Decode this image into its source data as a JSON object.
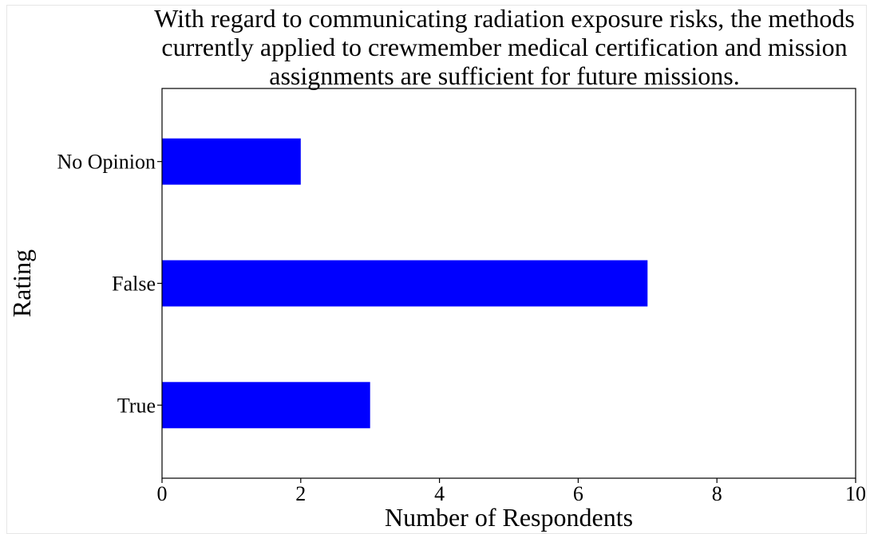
{
  "chart_data": {
    "type": "bar",
    "orientation": "horizontal",
    "title": "With regard to communicating radiation exposure risks, the methods currently applied to crewmember medical certification and mission assignments are sufficient for future missions.",
    "title_lines": [
      "With regard to communicating radiation exposure risks, the methods",
      "currently applied to crewmember medical certification and mission",
      "assignments are sufficient for future missions."
    ],
    "categories": [
      "True",
      "False",
      "No Opinion"
    ],
    "values": [
      3,
      7,
      2
    ],
    "xlabel": "Number of Respondents",
    "ylabel": "Rating",
    "xlim": [
      0,
      10
    ],
    "xticks": [
      0,
      2,
      4,
      6,
      8,
      10
    ],
    "bar_color": "#0000ff",
    "grid": false,
    "legend": "none"
  }
}
